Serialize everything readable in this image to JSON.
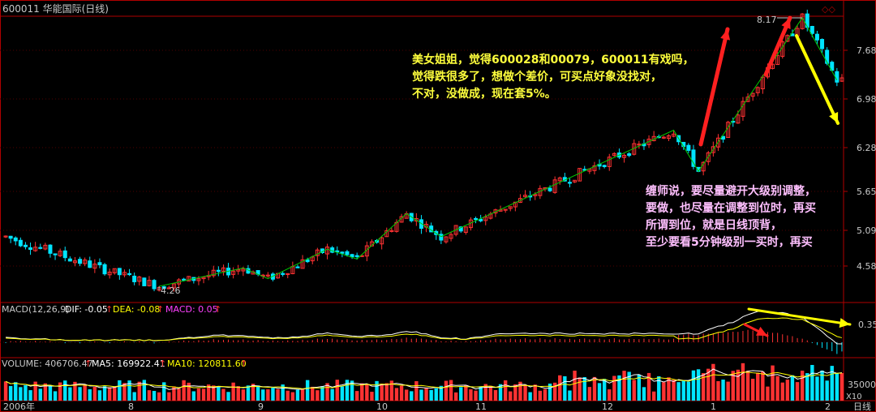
{
  "header": {
    "title": "600011 华能国际(日线)",
    "corner_glyph": "◇◇"
  },
  "colors": {
    "up": "#ff3232",
    "down": "#00e4ff",
    "border": "#b00000",
    "axis_text": "#c8c8c8",
    "trend_line": "#00c800",
    "annot_yellow": "#ffff3c",
    "annot_pink": "#ffc0ff",
    "arrow_red": "#ff2020",
    "arrow_yellow": "#ffff00",
    "dif_line": "#ffffff",
    "dea_line": "#ffff00",
    "ma5_line": "#ffffff",
    "ma10_line": "#ffff00"
  },
  "annotations": {
    "top_note": [
      "美女姐姐，觉得600028和00079，600011有戏吗，",
      "觉得跌很多了，想做个差价，可买点好象没找对，",
      "不对，没做成，现在套5%。"
    ],
    "right_note": [
      "缠师说，要尽量避开大级别调整，",
      "要做，也尽量在调整到位时，再买",
      "所谓到位，就是日线顶背，",
      "至少要看5分钟级别一买时，再买"
    ],
    "low_label": "4.26",
    "high_label": "8.17"
  },
  "chart_data": [
    {
      "type": "candlestick",
      "name": "price",
      "y_ticks": [
        "7.68",
        "6.98",
        "6.28",
        "5.65",
        "5.09",
        "4.58"
      ],
      "x_ticks": [
        "2006年",
        "8",
        "9",
        "10",
        "11",
        "12",
        "1",
        "2"
      ],
      "low": 4.26,
      "high": 8.17,
      "zigzag_points": [
        4.26,
        4.55,
        4.38,
        4.82,
        4.68,
        5.33,
        5.0,
        6.53,
        5.94,
        8.17,
        7.25
      ]
    },
    {
      "type": "line",
      "name": "macd",
      "label": "MACD(12,26,9)",
      "dif_label": "DIF: -0.05",
      "dea_label": "DEA: -0.08",
      "macd_label": "MACD: 0.05",
      "y_tick": "0.35",
      "up_marks": [
        "↑",
        "↑",
        "↑"
      ]
    },
    {
      "type": "bar",
      "name": "volume",
      "label": "VOLUME: 406706.47",
      "ma5_label": "MA5: 169922.41",
      "ma10_label": "MA10: 120811.60",
      "y_tick": "35000",
      "unit": "X10",
      "up_marks": [
        "↑",
        "↑",
        "↑"
      ]
    }
  ],
  "footer": {
    "period_label": "日线"
  }
}
